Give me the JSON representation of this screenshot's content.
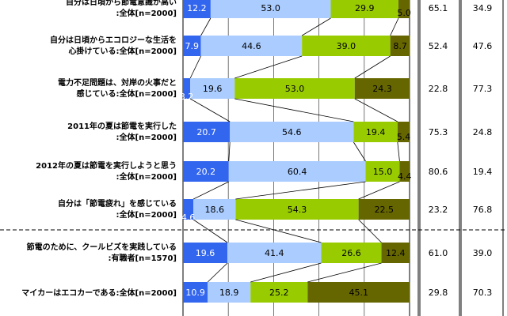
{
  "chart_data": {
    "type": "bar",
    "stacked": true,
    "orientation": "horizontal",
    "percent": true,
    "grid": true,
    "colors": [
      "#3366ee",
      "#aaccff",
      "#99cc00",
      "#666600"
    ],
    "rows": [
      {
        "label1": "自分は日頃から節電意識が高い",
        "label2": ":全体[n=2000]",
        "values": [
          12.2,
          53.0,
          29.9,
          5.0
        ],
        "totals": [
          "65.1",
          "34.9"
        ]
      },
      {
        "label1": "自分は日頃からエコロジーな生活を",
        "label2": "心掛けている:全体[n=2000]",
        "values": [
          7.9,
          44.6,
          39.0,
          8.7
        ],
        "totals": [
          "52.4",
          "47.6"
        ]
      },
      {
        "label1": "電力不足問題は、対岸の火事だと",
        "label2": "感じている:全体[n=2000]",
        "values": [
          3.2,
          19.6,
          53.0,
          24.3
        ],
        "totals": [
          "22.8",
          "77.3"
        ]
      },
      {
        "label1": "2011年の夏は節電を実行した",
        "label2": ":全体[n=2000]",
        "values": [
          20.7,
          54.6,
          19.4,
          5.4
        ],
        "totals": [
          "75.3",
          "24.8"
        ]
      },
      {
        "label1": "2012年の夏は節電を実行しようと思う",
        "label2": ":全体[n=2000]",
        "values": [
          20.2,
          60.4,
          15.0,
          4.4
        ],
        "totals": [
          "80.6",
          "19.4"
        ]
      },
      {
        "label1": "自分は「節電疲れ」を感じている",
        "label2": ":全体[n=2000]",
        "values": [
          4.6,
          18.6,
          54.3,
          22.5
        ],
        "totals": [
          "23.2",
          "76.8"
        ]
      },
      {
        "label1": "節電のために、クールビズを実践している",
        "label2": ":有職者[n=1570]",
        "values": [
          19.6,
          41.4,
          26.6,
          12.4
        ],
        "totals": [
          "61.0",
          "39.0"
        ]
      },
      {
        "label1": "マイカーはエコカーである:全体[n=2000]",
        "label2": "",
        "values": [
          10.9,
          18.9,
          25.2,
          45.1
        ],
        "totals": [
          "29.8",
          "70.3"
        ]
      }
    ]
  }
}
